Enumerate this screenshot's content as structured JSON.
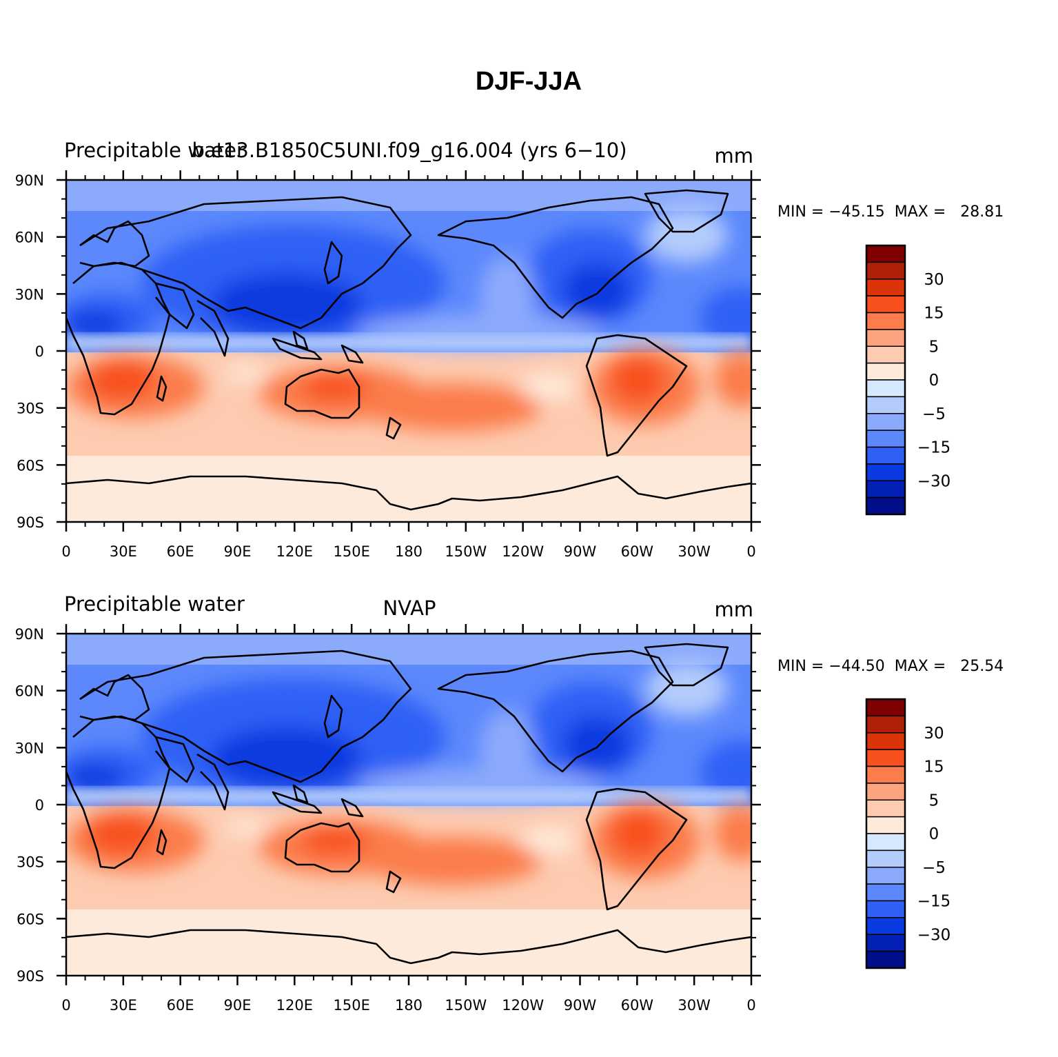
{
  "figure_title": "DJF-JJA",
  "colorbar": {
    "colors": [
      "#7e0000",
      "#b01f08",
      "#da3408",
      "#f8511f",
      "#fb7d4b",
      "#fca37f",
      "#fdcbb0",
      "#feeadb",
      "#d6e8ff",
      "#b4ccfc",
      "#8caafc",
      "#5c88fc",
      "#2e60f5",
      "#0a3be0",
      "#0221b4",
      "#000e8a"
    ],
    "labels": [
      "30",
      "15",
      "5",
      "0",
      "−5",
      "−15",
      "−30"
    ]
  },
  "panels": [
    {
      "left_label": "Precipitable water",
      "center_label": "b.e13.B1850C5UNI.f09_g16.004 (yrs 6−10)",
      "units": "mm",
      "stats": "MIN = −45.15  MAX =   28.81",
      "min": -45.15,
      "max": 28.81
    },
    {
      "left_label": "Precipitable water",
      "center_label": "NVAP",
      "units": "mm",
      "stats": "MIN = −44.50  MAX =   25.54",
      "min": -44.5,
      "max": 25.54
    }
  ],
  "axes": {
    "lat_labels": [
      "90N",
      "60N",
      "30N",
      "0",
      "30S",
      "60S",
      "90S"
    ],
    "lon_labels": [
      "0",
      "30E",
      "60E",
      "90E",
      "120E",
      "150E",
      "180",
      "150W",
      "120W",
      "90W",
      "60W",
      "30W",
      "0"
    ]
  }
}
